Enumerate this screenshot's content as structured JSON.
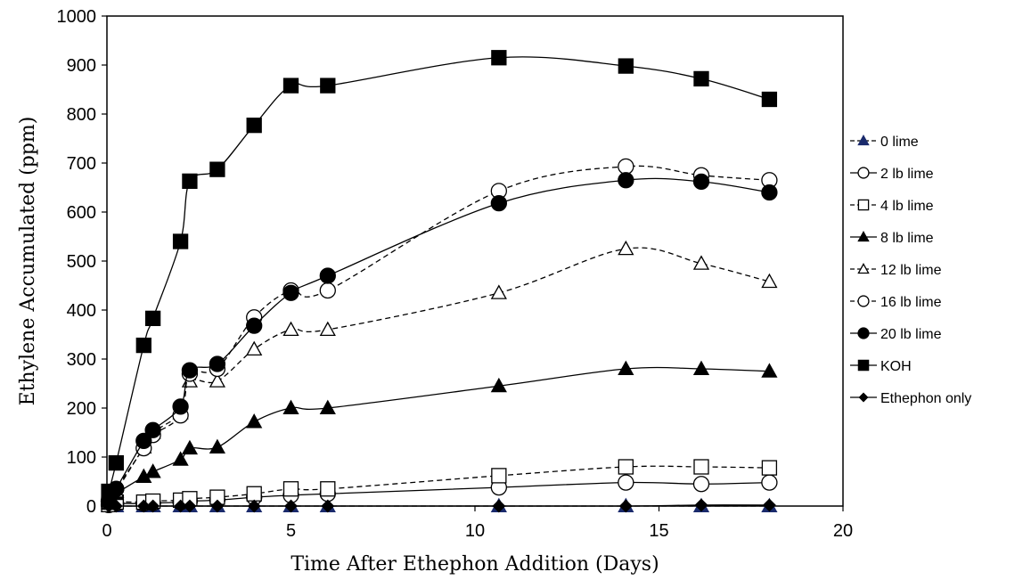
{
  "chart_data": {
    "type": "line",
    "title": "",
    "xlabel": "Time After Ethephon Addition (Days)",
    "ylabel": "Ethylene Accumulated (ppm)",
    "xlim": [
      0,
      20
    ],
    "ylim": [
      0,
      1000
    ],
    "xticks": [
      0,
      5,
      10,
      15,
      20
    ],
    "yticks": [
      0,
      100,
      200,
      300,
      400,
      500,
      600,
      700,
      800,
      900,
      1000
    ],
    "grid": false,
    "legend_position": "right",
    "series": [
      {
        "name": "0 lime",
        "marker": "triangle",
        "fill": "#1a2a6c",
        "stroke": "#1a2a6c",
        "dashed": true,
        "x": [
          0.05,
          0.25,
          1,
          1.25,
          2,
          2.25,
          3,
          4,
          5,
          6,
          10.65,
          14.1,
          16.15,
          18
        ],
        "y": [
          0,
          0,
          0,
          0,
          0,
          0,
          0,
          0,
          0,
          0,
          0,
          0,
          0,
          0
        ]
      },
      {
        "name": "2 lb lime",
        "marker": "circle",
        "fill": "#ffffff",
        "stroke": "#000000",
        "dashed": false,
        "x": [
          0.05,
          0.25,
          1,
          1.25,
          2,
          2.25,
          3,
          4,
          5,
          6,
          10.65,
          14.1,
          16.15,
          18
        ],
        "y": [
          2,
          5,
          5,
          6,
          8,
          10,
          12,
          18,
          22,
          25,
          38,
          48,
          45,
          48
        ]
      },
      {
        "name": "4 lb lime",
        "marker": "square",
        "fill": "#ffffff",
        "stroke": "#000000",
        "dashed": true,
        "x": [
          0.05,
          0.25,
          1,
          1.25,
          2,
          2.25,
          3,
          4,
          5,
          6,
          10.65,
          14.1,
          16.15,
          18
        ],
        "y": [
          3,
          8,
          8,
          10,
          12,
          15,
          18,
          25,
          35,
          35,
          62,
          80,
          80,
          78
        ]
      },
      {
        "name": "8 lb lime",
        "marker": "triangle",
        "fill": "#000000",
        "stroke": "#000000",
        "dashed": false,
        "x": [
          0.05,
          0.25,
          1,
          1.25,
          2,
          2.25,
          3,
          4,
          5,
          6,
          10.65,
          14.1,
          16.15,
          18
        ],
        "y": [
          5,
          25,
          60,
          70,
          95,
          118,
          120,
          172,
          200,
          200,
          245,
          280,
          280,
          275
        ]
      },
      {
        "name": "12 lb lime",
        "marker": "triangle",
        "fill": "#ffffff",
        "stroke": "#000000",
        "dashed": true,
        "x": [
          0.05,
          0.25,
          1,
          1.25,
          2,
          2.25,
          3,
          4,
          5,
          6,
          10.65,
          14.1,
          16.15,
          18
        ],
        "y": [
          8,
          30,
          120,
          150,
          190,
          255,
          255,
          320,
          360,
          360,
          435,
          525,
          495,
          458
        ]
      },
      {
        "name": "16 lb lime",
        "marker": "circle",
        "fill": "#ffffff",
        "stroke": "#000000",
        "dashed": true,
        "x": [
          0.05,
          0.25,
          1,
          1.25,
          2,
          2.25,
          3,
          4,
          5,
          6,
          10.65,
          14.1,
          16.15,
          18
        ],
        "y": [
          10,
          35,
          118,
          145,
          185,
          270,
          280,
          385,
          440,
          440,
          643,
          693,
          675,
          665
        ]
      },
      {
        "name": "20 lb lime",
        "marker": "circle",
        "fill": "#000000",
        "stroke": "#000000",
        "dashed": false,
        "x": [
          0.05,
          0.25,
          1,
          1.25,
          2,
          2.25,
          3,
          4,
          5,
          6,
          10.65,
          14.1,
          16.15,
          18
        ],
        "y": [
          10,
          35,
          133,
          155,
          203,
          277,
          290,
          368,
          435,
          470,
          618,
          665,
          662,
          640
        ]
      },
      {
        "name": "KOH",
        "marker": "square",
        "fill": "#000000",
        "stroke": "#000000",
        "dashed": false,
        "x": [
          0.05,
          0.25,
          1,
          1.25,
          2,
          2.25,
          3,
          4,
          5,
          6,
          10.65,
          14.1,
          16.15,
          18
        ],
        "y": [
          30,
          88,
          328,
          383,
          540,
          663,
          687,
          777,
          858,
          858,
          915,
          898,
          872,
          830
        ]
      },
      {
        "name": "Ethephon only",
        "marker": "diamond",
        "fill": "#000000",
        "stroke": "#000000",
        "dashed": false,
        "x": [
          0.05,
          0.25,
          1,
          1.25,
          2,
          2.25,
          3,
          4,
          5,
          6,
          10.65,
          14.1,
          16.15,
          18
        ],
        "y": [
          0,
          0,
          0,
          0,
          0,
          0,
          0,
          0,
          0,
          0,
          0,
          0,
          2,
          2
        ]
      }
    ]
  }
}
